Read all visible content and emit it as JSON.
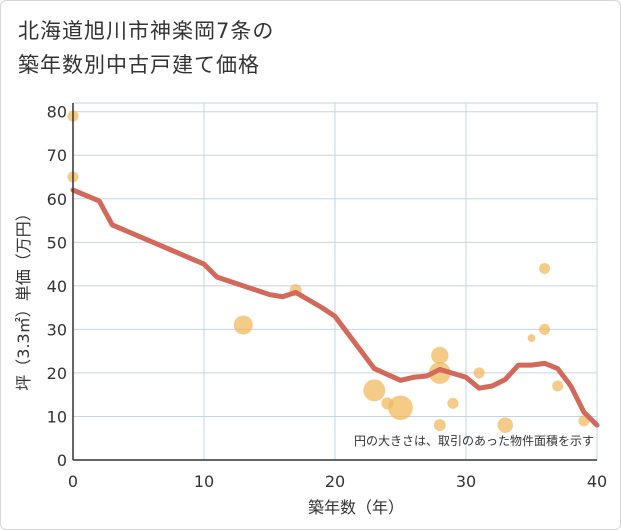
{
  "title_line1": "北海道旭川市神楽岡7条の",
  "title_line2": "築年数別中古戸建て価格",
  "chart_data": {
    "type": "scatter",
    "xlabel": "築年数（年）",
    "ylabel": "坪（3.3㎡）単価（万円）",
    "xlim": [
      0,
      40
    ],
    "ylim": [
      0,
      82
    ],
    "x_ticks": [
      0,
      10,
      20,
      30,
      40
    ],
    "y_ticks": [
      0,
      10,
      20,
      30,
      40,
      50,
      60,
      70,
      80
    ],
    "note": "円の大きさは、取引のあった物件面積を示す",
    "colors": {
      "bubble": "#f0b95a",
      "line": "#d2695a",
      "grid": "#c5d5e3",
      "axis": "#333333"
    },
    "points": [
      {
        "x": 0,
        "y": 79,
        "size": 1
      },
      {
        "x": 0,
        "y": 65,
        "size": 1
      },
      {
        "x": 13,
        "y": 31,
        "size": 3
      },
      {
        "x": 17,
        "y": 39,
        "size": 1.2
      },
      {
        "x": 23,
        "y": 16,
        "size": 4
      },
      {
        "x": 24,
        "y": 13,
        "size": 1.2
      },
      {
        "x": 25,
        "y": 12,
        "size": 5
      },
      {
        "x": 28,
        "y": 24,
        "size": 2.5
      },
      {
        "x": 28,
        "y": 20,
        "size": 4
      },
      {
        "x": 28,
        "y": 8,
        "size": 1.2
      },
      {
        "x": 29,
        "y": 13,
        "size": 1
      },
      {
        "x": 31,
        "y": 20,
        "size": 1
      },
      {
        "x": 33,
        "y": 8,
        "size": 2
      },
      {
        "x": 35,
        "y": 28,
        "size": 0.5
      },
      {
        "x": 36,
        "y": 44,
        "size": 1
      },
      {
        "x": 36,
        "y": 30,
        "size": 1
      },
      {
        "x": 37,
        "y": 17,
        "size": 1
      },
      {
        "x": 39,
        "y": 9,
        "size": 1
      }
    ],
    "trend": [
      {
        "x": 0,
        "y": 62
      },
      {
        "x": 2,
        "y": 59.5
      },
      {
        "x": 3,
        "y": 54
      },
      {
        "x": 10,
        "y": 45
      },
      {
        "x": 11,
        "y": 42
      },
      {
        "x": 15,
        "y": 38
      },
      {
        "x": 16,
        "y": 37.5
      },
      {
        "x": 17,
        "y": 38.5
      },
      {
        "x": 19,
        "y": 35
      },
      {
        "x": 20,
        "y": 33
      },
      {
        "x": 23,
        "y": 21
      },
      {
        "x": 25,
        "y": 18.3
      },
      {
        "x": 26,
        "y": 19
      },
      {
        "x": 27,
        "y": 19.3
      },
      {
        "x": 28,
        "y": 20.8
      },
      {
        "x": 30,
        "y": 19
      },
      {
        "x": 31,
        "y": 16.5
      },
      {
        "x": 32,
        "y": 17
      },
      {
        "x": 33,
        "y": 18.5
      },
      {
        "x": 34,
        "y": 21.8
      },
      {
        "x": 35,
        "y": 21.8
      },
      {
        "x": 36,
        "y": 22.2
      },
      {
        "x": 37,
        "y": 21
      },
      {
        "x": 38,
        "y": 17
      },
      {
        "x": 39,
        "y": 11
      },
      {
        "x": 40,
        "y": 8
      }
    ]
  }
}
